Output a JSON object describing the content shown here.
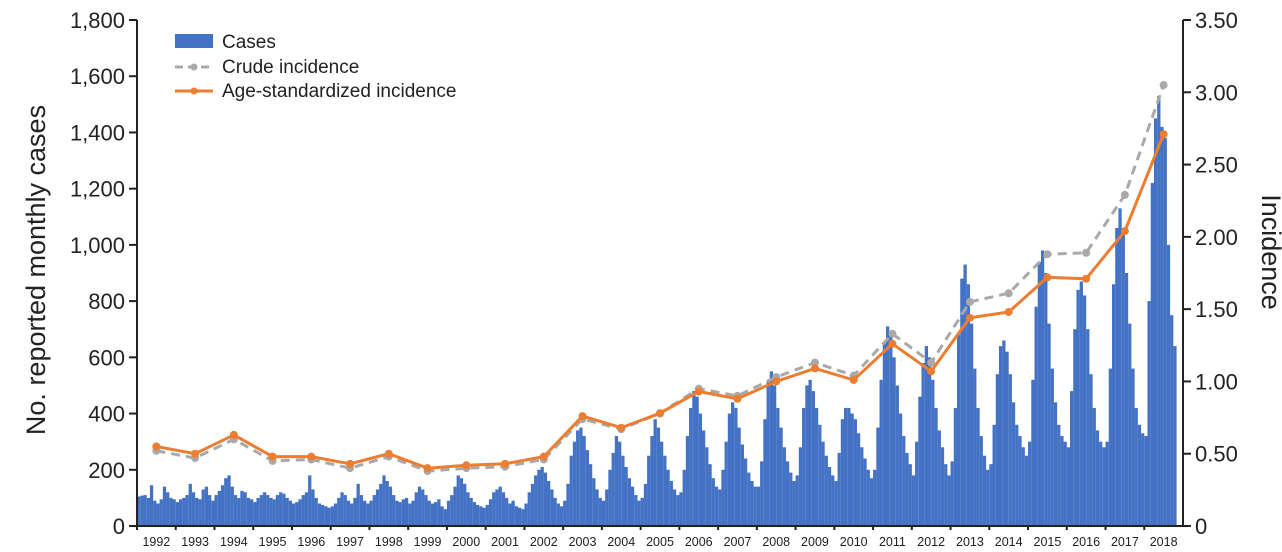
{
  "chart_data": {
    "type": "bar+line",
    "x_label": "",
    "y_left_label": "No. reported monthly cases",
    "y_right_label": "Incidence",
    "y_left_ticks": [
      "0",
      "200",
      "400",
      "600",
      "800",
      "1,000",
      "1,200",
      "1,400",
      "1,600",
      "1,800"
    ],
    "y_right_ticks": [
      "0",
      "0.50",
      "1.00",
      "1.50",
      "2.00",
      "2.50",
      "3.00",
      "3.50"
    ],
    "ylim_left": [
      0,
      1800
    ],
    "ylim_right": [
      0,
      3.5
    ],
    "years": [
      "1992",
      "1993",
      "1994",
      "1995",
      "1996",
      "1997",
      "1998",
      "1999",
      "2000",
      "2001",
      "2002",
      "2003",
      "2004",
      "2005",
      "2006",
      "2007",
      "2008",
      "2009",
      "2010",
      "2011",
      "2012",
      "2013",
      "2014",
      "2015",
      "2016",
      "2017",
      "2018"
    ],
    "legend_position": "top-left",
    "series": [
      {
        "name": "Cases",
        "kind": "bar",
        "granularity": "monthly",
        "color": "#4472C4",
        "values_by_year": [
          [
            105,
            108,
            110,
            100,
            145,
            90,
            80,
            95,
            140,
            120,
            100,
            95
          ],
          [
            85,
            95,
            100,
            110,
            150,
            120,
            100,
            95,
            130,
            140,
            110,
            90
          ],
          [
            110,
            125,
            145,
            170,
            180,
            140,
            110,
            100,
            125,
            120,
            100,
            95
          ],
          [
            85,
            100,
            110,
            120,
            110,
            100,
            95,
            110,
            120,
            115,
            100,
            90
          ],
          [
            80,
            85,
            95,
            110,
            120,
            180,
            130,
            100,
            80,
            75,
            70,
            65
          ],
          [
            70,
            80,
            100,
            120,
            110,
            90,
            80,
            100,
            150,
            110,
            90,
            80
          ],
          [
            90,
            110,
            130,
            150,
            180,
            160,
            140,
            110,
            90,
            85,
            95,
            100
          ],
          [
            80,
            90,
            120,
            140,
            130,
            110,
            90,
            80,
            85,
            95,
            70,
            60
          ],
          [
            90,
            110,
            140,
            180,
            170,
            150,
            120,
            100,
            85,
            75,
            70,
            65
          ],
          [
            75,
            95,
            120,
            130,
            140,
            120,
            100,
            80,
            90,
            70,
            65,
            60
          ],
          [
            80,
            120,
            150,
            180,
            200,
            210,
            190,
            160,
            130,
            100,
            80,
            70
          ],
          [
            90,
            150,
            250,
            300,
            340,
            350,
            320,
            270,
            220,
            170,
            130,
            100
          ],
          [
            90,
            130,
            200,
            260,
            320,
            300,
            250,
            210,
            170,
            140,
            110,
            90
          ],
          [
            100,
            150,
            250,
            320,
            380,
            350,
            300,
            250,
            200,
            160,
            130,
            110
          ],
          [
            120,
            200,
            320,
            420,
            480,
            460,
            400,
            340,
            280,
            220,
            170,
            140
          ],
          [
            130,
            200,
            300,
            400,
            440,
            420,
            350,
            290,
            240,
            190,
            160,
            140
          ],
          [
            140,
            230,
            380,
            520,
            550,
            500,
            420,
            350,
            280,
            230,
            190,
            160
          ],
          [
            180,
            280,
            420,
            500,
            520,
            480,
            420,
            360,
            300,
            250,
            210,
            180
          ],
          [
            160,
            260,
            380,
            420,
            420,
            400,
            380,
            330,
            280,
            240,
            200,
            170
          ],
          [
            200,
            350,
            520,
            650,
            710,
            680,
            600,
            500,
            400,
            320,
            260,
            220
          ],
          [
            180,
            300,
            460,
            580,
            640,
            600,
            520,
            420,
            340,
            280,
            220,
            180
          ],
          [
            230,
            420,
            680,
            880,
            930,
            860,
            720,
            560,
            420,
            320,
            250,
            200
          ],
          [
            220,
            360,
            540,
            640,
            660,
            620,
            540,
            440,
            360,
            320,
            280,
            250
          ],
          [
            300,
            520,
            780,
            940,
            980,
            900,
            720,
            560,
            440,
            360,
            320,
            300
          ],
          [
            280,
            480,
            700,
            840,
            870,
            820,
            700,
            540,
            420,
            340,
            300,
            280
          ],
          [
            300,
            560,
            860,
            1060,
            1130,
            1060,
            900,
            720,
            560,
            420,
            360,
            330
          ],
          [
            320,
            800,
            1220,
            1450,
            1530,
            1420,
            1380,
            1000,
            750,
            640
          ]
        ]
      },
      {
        "name": "Crude incidence",
        "kind": "line",
        "style": "dashed",
        "color": "#A9A9A9",
        "values": [
          0.52,
          0.47,
          0.6,
          0.45,
          0.46,
          0.4,
          0.48,
          0.38,
          0.4,
          0.41,
          0.46,
          0.74,
          0.67,
          0.78,
          0.95,
          0.9,
          1.03,
          1.13,
          1.04,
          1.33,
          1.13,
          1.55,
          1.61,
          1.88,
          1.89,
          2.29,
          3.05
        ]
      },
      {
        "name": "Age-standardized incidence",
        "kind": "line",
        "style": "solid",
        "color": "#ED7D31",
        "values": [
          0.55,
          0.5,
          0.63,
          0.48,
          0.48,
          0.43,
          0.5,
          0.4,
          0.42,
          0.43,
          0.48,
          0.76,
          0.68,
          0.78,
          0.93,
          0.88,
          1.0,
          1.09,
          1.01,
          1.26,
          1.07,
          1.44,
          1.48,
          1.72,
          1.71,
          2.04,
          2.71
        ]
      }
    ]
  }
}
